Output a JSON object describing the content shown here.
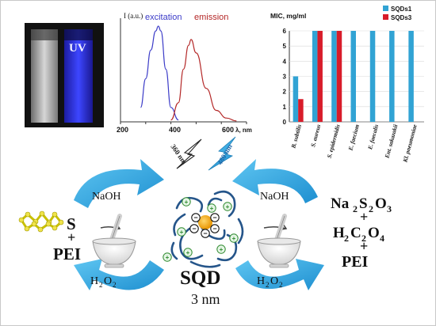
{
  "photo": {
    "uv_label": "UV"
  },
  "spectrum_chart": {
    "ylabel": "I (a.u.)",
    "xlabel": "λ, nm",
    "xticks": [
      "200",
      "400",
      "600"
    ],
    "series": [
      {
        "name": "excitation",
        "color": "#3c3cc8"
      },
      {
        "name": "emission",
        "color": "#b42828"
      }
    ]
  },
  "chart_data": [
    {
      "type": "line",
      "ylabel": "I (a.u.)",
      "xlabel": "λ, nm",
      "xlim": [
        200,
        700
      ],
      "series": [
        {
          "name": "excitation",
          "x": [
            280,
            300,
            320,
            340,
            350,
            360,
            380,
            400,
            430
          ],
          "y": [
            0.15,
            0.45,
            0.75,
            0.95,
            1.0,
            0.95,
            0.55,
            0.15,
            0.02
          ]
        },
        {
          "name": "emission",
          "x": [
            400,
            430,
            450,
            470,
            480,
            500,
            540,
            580,
            620,
            660
          ],
          "y": [
            0.02,
            0.2,
            0.55,
            0.8,
            0.86,
            0.72,
            0.35,
            0.12,
            0.04,
            0.01
          ]
        }
      ]
    },
    {
      "type": "bar",
      "ylabel": "MIC, mg/ml",
      "ylim": [
        0,
        6
      ],
      "yticks": [
        "0",
        "1",
        "2",
        "3",
        "4",
        "5",
        "6"
      ],
      "categories": [
        "B. subtilis",
        "S. aureus",
        "S. epidermidis",
        "E. faecium",
        "E. faecalis",
        "Ent. sakazakii",
        "Kl. pneumoniae"
      ],
      "series": [
        {
          "name": "SQDs1",
          "color": "#31a3d4",
          "values": [
            3,
            6,
            6,
            6,
            6,
            6,
            6
          ]
        },
        {
          "name": "SQDs3",
          "color": "#d81c2a",
          "values": [
            1.5,
            6,
            6,
            null,
            null,
            null,
            null
          ]
        }
      ]
    }
  ],
  "wavelengths": {
    "excitation": "360 nm",
    "emission": "480 nm"
  },
  "left_scheme": {
    "reagent_top": "NaOH",
    "s": "S",
    "plus": "+",
    "pei": "PEI",
    "ox_sub": "2",
    "ox_base": "H",
    "ox_tail": "O"
  },
  "right_scheme": {
    "reagent_top": "NaOH",
    "ox_base": "H",
    "ox_sub": "2",
    "ox_tail": "O"
  },
  "center": {
    "label": "SQD",
    "size": "3 nm"
  },
  "formulas": {
    "thio": {
      "p1": "Na",
      "s1": "2",
      "p2": "S",
      "s2": "2",
      "p3": "O",
      "s3": "3"
    },
    "plus1": "+",
    "oxalic": {
      "p1": "H",
      "s1": "2",
      "p2": "C",
      "s2": "2",
      "p3": "O",
      "s3": "4"
    },
    "plus2": "+",
    "pei": "PEI"
  },
  "charges": {
    "plus": "+",
    "minus": "−"
  }
}
